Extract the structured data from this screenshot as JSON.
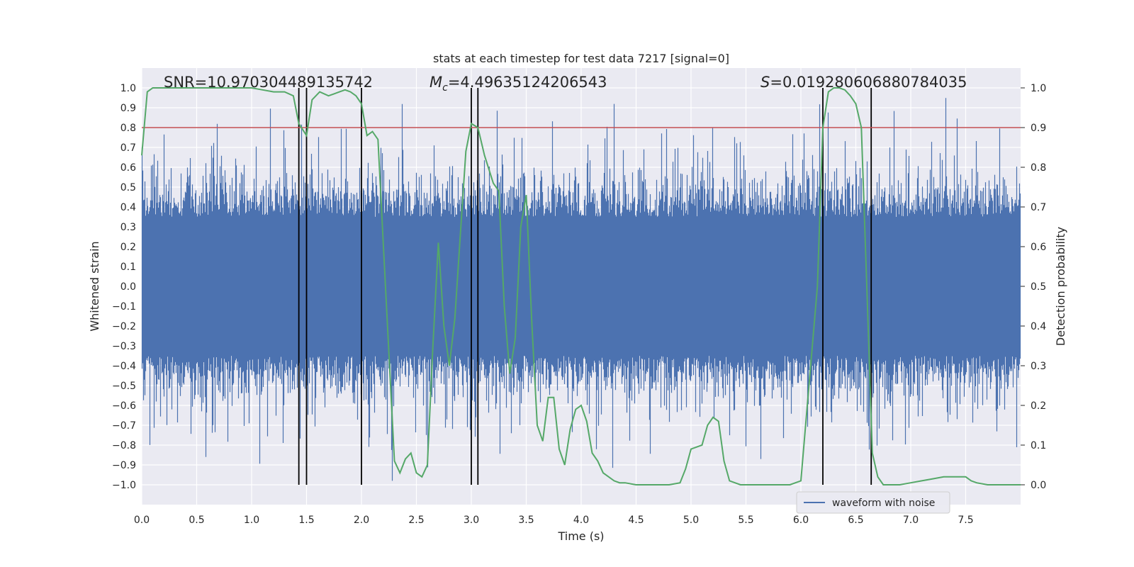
{
  "chart_data": {
    "type": "line",
    "title": "stats at each timestep for test data 7217 [signal=0]",
    "xlabel": "Time (s)",
    "ylabel": "Whitened strain",
    "ylabel_right": "Detection probability",
    "xlim": [
      0.0,
      8.0
    ],
    "ylim": [
      -1.1,
      1.1
    ],
    "ylim_right": [
      -0.05,
      1.05
    ],
    "xticks": [
      "0.0",
      "0.5",
      "1.0",
      "1.5",
      "2.0",
      "2.5",
      "3.0",
      "3.5",
      "4.0",
      "4.5",
      "5.0",
      "5.5",
      "6.0",
      "6.5",
      "7.0",
      "7.5"
    ],
    "yticks": [
      "1.0",
      "0.9",
      "0.8",
      "0.7",
      "0.6",
      "0.5",
      "0.4",
      "0.3",
      "0.2",
      "0.1",
      "0.0",
      "−0.1",
      "−0.2",
      "−0.3",
      "−0.4",
      "−0.5",
      "−0.6",
      "−0.7",
      "−0.8",
      "−0.9",
      "−1.0"
    ],
    "yticks_right": [
      "1.0",
      "0.9",
      "0.8",
      "0.7",
      "0.6",
      "0.5",
      "0.4",
      "0.3",
      "0.2",
      "0.1",
      "0.0"
    ],
    "grid": true,
    "legend": {
      "location": "lower-right",
      "entries": [
        "waveform with noise"
      ]
    },
    "annotations": {
      "snr": "SNR=10.970304489135742",
      "mc_symbol": "M",
      "mc_sub": "c",
      "mc_value": "=4.49635124206543",
      "s_symbol": "S",
      "s_value": "=0.019280606880784035"
    },
    "threshold": {
      "value": 0.8,
      "color": "#c44e52"
    },
    "vertical_lines": [
      1.43,
      1.5,
      2.0,
      3.0,
      3.06,
      6.2,
      6.64
    ],
    "waveform": {
      "name": "waveform with noise",
      "color": "#4c72b0",
      "envelope": 0.55,
      "dense_band": 0.35
    },
    "probability": {
      "color": "#55a868",
      "x": [
        0.0,
        0.05,
        0.1,
        0.15,
        0.2,
        0.3,
        0.5,
        0.7,
        0.9,
        1.0,
        1.1,
        1.2,
        1.3,
        1.38,
        1.43,
        1.5,
        1.55,
        1.62,
        1.7,
        1.75,
        1.8,
        1.85,
        1.9,
        1.95,
        2.0,
        2.05,
        2.1,
        2.15,
        2.2,
        2.3,
        2.35,
        2.4,
        2.45,
        2.5,
        2.55,
        2.6,
        2.65,
        2.7,
        2.75,
        2.8,
        2.85,
        2.9,
        2.95,
        3.0,
        3.06,
        3.12,
        3.2,
        3.25,
        3.3,
        3.35,
        3.4,
        3.45,
        3.5,
        3.55,
        3.6,
        3.65,
        3.7,
        3.75,
        3.8,
        3.85,
        3.9,
        3.95,
        4.0,
        4.05,
        4.1,
        4.15,
        4.2,
        4.3,
        4.35,
        4.4,
        4.5,
        4.6,
        4.7,
        4.8,
        4.9,
        4.95,
        5.0,
        5.1,
        5.15,
        5.2,
        5.25,
        5.3,
        5.35,
        5.4,
        5.45,
        5.5,
        5.7,
        5.9,
        6.0,
        6.15,
        6.2,
        6.25,
        6.3,
        6.35,
        6.4,
        6.45,
        6.5,
        6.55,
        6.6,
        6.65,
        6.7,
        6.75,
        6.8,
        6.85,
        6.9,
        7.0,
        7.1,
        7.2,
        7.3,
        7.4,
        7.5,
        7.55,
        7.6,
        7.7,
        7.9,
        8.0
      ],
      "y": [
        0.83,
        0.99,
        1.0,
        1.0,
        1.0,
        1.0,
        1.0,
        1.0,
        1.0,
        1.0,
        0.995,
        0.99,
        0.99,
        0.98,
        0.91,
        0.88,
        0.97,
        0.99,
        0.98,
        0.985,
        0.99,
        0.995,
        0.99,
        0.98,
        0.96,
        0.88,
        0.89,
        0.87,
        0.6,
        0.06,
        0.03,
        0.065,
        0.08,
        0.03,
        0.02,
        0.05,
        0.35,
        0.61,
        0.4,
        0.3,
        0.42,
        0.63,
        0.84,
        0.91,
        0.9,
        0.83,
        0.76,
        0.74,
        0.45,
        0.28,
        0.37,
        0.65,
        0.73,
        0.41,
        0.15,
        0.11,
        0.22,
        0.22,
        0.09,
        0.05,
        0.14,
        0.19,
        0.2,
        0.16,
        0.08,
        0.06,
        0.03,
        0.01,
        0.005,
        0.005,
        0.0,
        0.0,
        0.0,
        0.0,
        0.005,
        0.04,
        0.09,
        0.1,
        0.15,
        0.17,
        0.16,
        0.06,
        0.01,
        0.005,
        0.0,
        0.0,
        0.0,
        0.0,
        0.01,
        0.5,
        0.9,
        0.99,
        1.0,
        1.0,
        0.995,
        0.98,
        0.96,
        0.9,
        0.5,
        0.08,
        0.02,
        0.0,
        0.0,
        0.0,
        0.0,
        0.005,
        0.01,
        0.015,
        0.02,
        0.02,
        0.02,
        0.01,
        0.005,
        0.0,
        0.0,
        0.0
      ]
    }
  }
}
